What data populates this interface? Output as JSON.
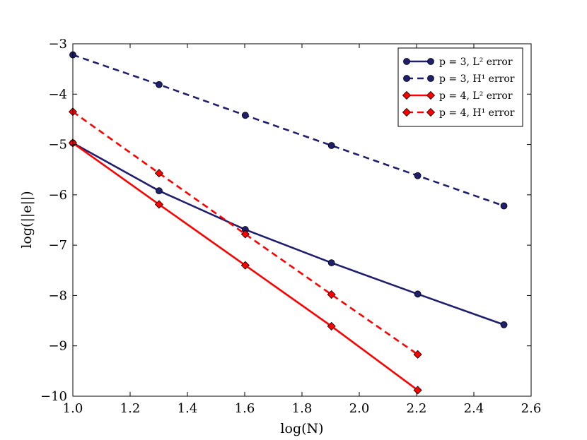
{
  "chart_data": {
    "type": "line",
    "title": "",
    "xlabel": "log(N)",
    "ylabel": "log(||e||)",
    "xlim": [
      1.0,
      2.6
    ],
    "ylim": [
      -10,
      -3
    ],
    "xticks": [
      1.0,
      1.2,
      1.4,
      1.6,
      1.8,
      2.0,
      2.2,
      2.4,
      2.6
    ],
    "xtick_labels": [
      "1.0",
      "1.2",
      "1.4",
      "1.6",
      "1.8",
      "2.0",
      "2.2",
      "2.4",
      "2.6"
    ],
    "yticks": [
      -10,
      -9,
      -8,
      -7,
      -6,
      -5,
      -4,
      -3
    ],
    "ytick_labels": [
      "−10",
      "−9",
      "−8",
      "−7",
      "−6",
      "−5",
      "−4",
      "−3"
    ],
    "grid": false,
    "legend_position": "top-right",
    "series": [
      {
        "name": "p = 3, L² error",
        "color": "#1f1f6e",
        "linestyle": "solid",
        "marker": "circle",
        "x": [
          1.0,
          1.301,
          1.602,
          1.903,
          2.204,
          2.505
        ],
        "y": [
          -4.97,
          -5.92,
          -6.69,
          -7.35,
          -7.97,
          -8.58
        ]
      },
      {
        "name": "p = 3, H¹ error",
        "color": "#1f1f6e",
        "linestyle": "dashed",
        "marker": "circle",
        "x": [
          1.0,
          1.301,
          1.602,
          1.903,
          2.204,
          2.505
        ],
        "y": [
          -3.22,
          -3.81,
          -4.42,
          -5.02,
          -5.62,
          -6.22
        ]
      },
      {
        "name": "p = 4, L² error",
        "color": "#ff0000",
        "linestyle": "solid",
        "marker": "diamond",
        "x": [
          1.0,
          1.301,
          1.602,
          1.903,
          2.204
        ],
        "y": [
          -4.97,
          -6.19,
          -7.4,
          -8.61,
          -9.88
        ]
      },
      {
        "name": "p = 4, H¹ error",
        "color": "#ff0000",
        "linestyle": "dashed",
        "marker": "diamond",
        "x": [
          1.0,
          1.301,
          1.602,
          1.903,
          2.204
        ],
        "y": [
          -4.35,
          -5.57,
          -6.78,
          -7.98,
          -9.17
        ]
      }
    ]
  }
}
